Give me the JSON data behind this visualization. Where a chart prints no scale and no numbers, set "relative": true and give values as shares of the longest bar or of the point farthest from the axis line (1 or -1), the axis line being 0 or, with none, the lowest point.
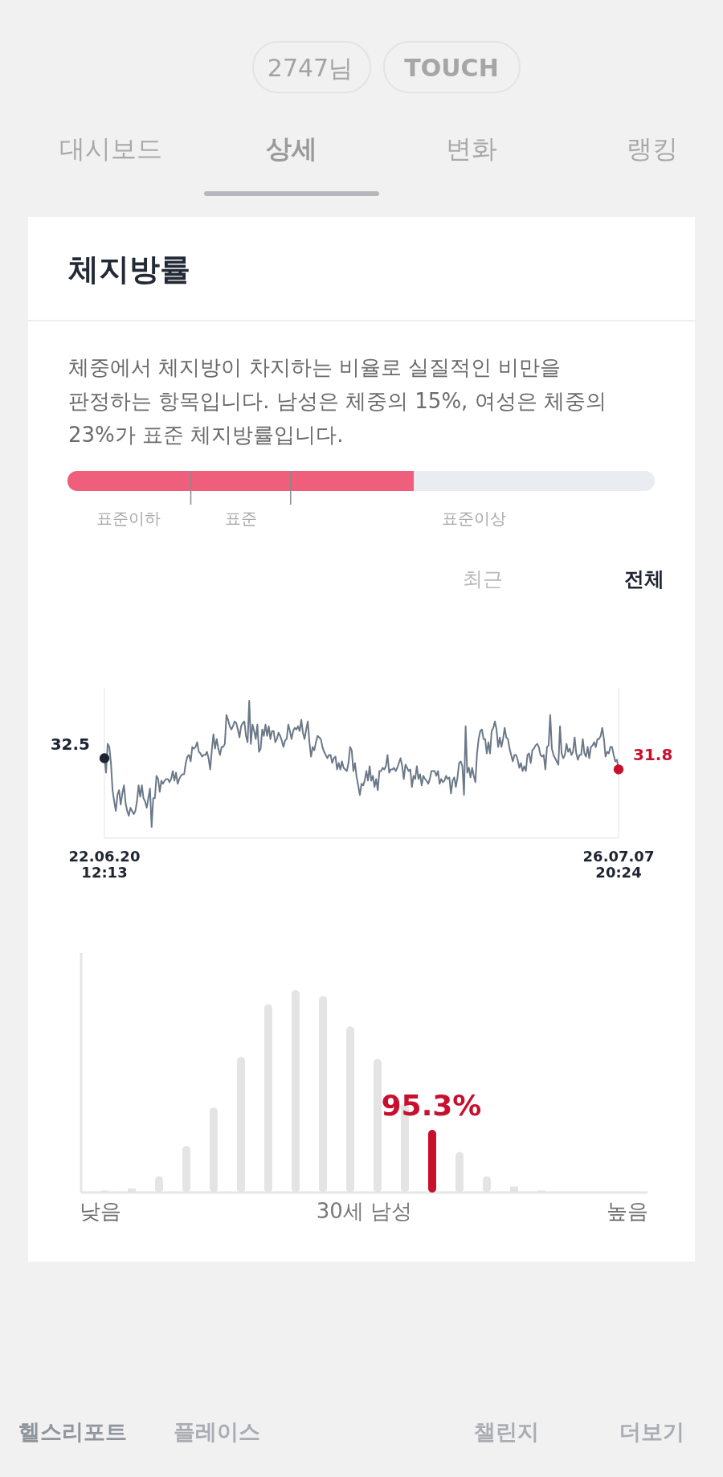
{
  "chart_data": [
    {
      "type": "other",
      "annotations": [
        "2747님",
        "TOUCH",
        "대시보드",
        "상세",
        "변화",
        "랭킹"
      ]
    },
    {
      "type": "bar",
      "orientation": "horizontal",
      "relative": true,
      "stacked": true,
      "title": "체지방률",
      "subtitle": "체중에서 체지방이 차지하는 비율로 실질적인 비만을 판정하는 항목입니다. 남성은 체중의 15%, 여성은 체중의 23%가 표준 체지방률입니다.",
      "categories": [
        null
      ],
      "series": [
        {
          "color": "#ef5f7b",
          "values": [
            0.59
          ]
        },
        {
          "color": "#e9ecf1",
          "values": [
            0.41
          ]
        }
      ],
      "ref_lines": [
        {
          "axis": "x",
          "value": 0.21
        },
        {
          "axis": "x",
          "value": 0.38
        }
      ],
      "annotations": [
        "표준이하",
        "표준",
        "표준이상"
      ]
    },
    {
      "type": "line",
      "annotations": [
        "최근",
        "전체"
      ],
      "tick_labels": "x",
      "ylim": [
        27.5,
        36.9
      ],
      "categories": [
        "22.06.20 12:13",
        null,
        null,
        null,
        null,
        null,
        null,
        null,
        null,
        null,
        null,
        null,
        null,
        null,
        null,
        null,
        null,
        null,
        null,
        null,
        null,
        null,
        null,
        null,
        null,
        null,
        null,
        null,
        null,
        null,
        null,
        null,
        null,
        null,
        null,
        null,
        null,
        null,
        null,
        null,
        null,
        null,
        null,
        null,
        null,
        null,
        null,
        null,
        null,
        null,
        null,
        null,
        null,
        null,
        null,
        null,
        null,
        null,
        null,
        null,
        null,
        null,
        null,
        null,
        null,
        null,
        null,
        null,
        null,
        null,
        null,
        null,
        null,
        null,
        null,
        null,
        null,
        null,
        null,
        null,
        null,
        null,
        null,
        null,
        null,
        null,
        null,
        null,
        null,
        null,
        null,
        null,
        null,
        null,
        null,
        null,
        null,
        null,
        null,
        null,
        null,
        null,
        null,
        null,
        null,
        null,
        null,
        null,
        null,
        null,
        null,
        null,
        null,
        null,
        null,
        null,
        null,
        null,
        null,
        null,
        null,
        null,
        null,
        null,
        null,
        null,
        null,
        null,
        null,
        null,
        null,
        null,
        null,
        null,
        null,
        null,
        null,
        null,
        null,
        null,
        null,
        null,
        null,
        null,
        null,
        null,
        null,
        null,
        null,
        null,
        null,
        null,
        null,
        null,
        null,
        null,
        null,
        null,
        null,
        null,
        null,
        null,
        null,
        null,
        null,
        null,
        null,
        null,
        null,
        null,
        null,
        null,
        null,
        null,
        null,
        null,
        null,
        null,
        null,
        null,
        null,
        null,
        null,
        null,
        null,
        null,
        null,
        null,
        null,
        null,
        null,
        null,
        null,
        null,
        null,
        null,
        null,
        null,
        null,
        null,
        null,
        null,
        null,
        null,
        null,
        null,
        null,
        null,
        null,
        null,
        null,
        null,
        null,
        null,
        null,
        null,
        null,
        null,
        null,
        null,
        null,
        null,
        null,
        null,
        null,
        null,
        null,
        null,
        null,
        null,
        null,
        null,
        null,
        null,
        null,
        null,
        null,
        null,
        null,
        null,
        null,
        null,
        null,
        null,
        null,
        null,
        null,
        null,
        null,
        null,
        null,
        null,
        null,
        null,
        null,
        null,
        null,
        null,
        null,
        null,
        null,
        null,
        null,
        null,
        null,
        null,
        null,
        null,
        null,
        null,
        null,
        null,
        null,
        null,
        null,
        null,
        null,
        null,
        null,
        null,
        null,
        null,
        null,
        null,
        null,
        null,
        null,
        null,
        null,
        null,
        null,
        null,
        null,
        null,
        null,
        null,
        null,
        null,
        null,
        null,
        null,
        null,
        null,
        null,
        null,
        null,
        null,
        null,
        null,
        null,
        null,
        null,
        null,
        null,
        null,
        null,
        "26.07.07 20:24"
      ],
      "series": [
        {
          "color": "#6b7888",
          "values": [
            32.5,
            31.6,
            33.4,
            33.2,
            32.2,
            30.5,
            29.8,
            29.2,
            30.2,
            30.5,
            29.6,
            30.3,
            30.8,
            29.7,
            29.2,
            28.9,
            29.4,
            29.2,
            29.0,
            29.2,
            29.8,
            30.8,
            30.1,
            30.8,
            30.0,
            29.8,
            29.4,
            30.0,
            30.6,
            28.2,
            30.0,
            30.0,
            31.4,
            31.2,
            30.4,
            31.1,
            30.9,
            31.1,
            31.2,
            31.2,
            31.0,
            31.2,
            31.7,
            31.1,
            31.6,
            30.9,
            31.2,
            31.4,
            31.5,
            31.5,
            32.2,
            32.6,
            32.7,
            32.3,
            33.2,
            33.1,
            33.2,
            33.5,
            32.9,
            32.8,
            32.6,
            32.7,
            32.7,
            32.9,
            32.5,
            31.8,
            33.0,
            34.0,
            33.1,
            33.7,
            33.1,
            32.7,
            33.2,
            33.2,
            33.4,
            35.2,
            34.9,
            34.5,
            34.3,
            34.5,
            34.8,
            34.7,
            34.3,
            33.8,
            34.5,
            34.7,
            34.8,
            33.9,
            33.5,
            36.1,
            33.4,
            34.6,
            34.2,
            33.7,
            34.6,
            32.9,
            33.1,
            34.3,
            33.9,
            34.6,
            33.9,
            34.5,
            33.7,
            34.2,
            34.2,
            33.5,
            33.7,
            34.1,
            33.9,
            33.6,
            33.2,
            33.6,
            33.7,
            34.6,
            34.2,
            33.7,
            34.2,
            34.4,
            34.3,
            34.5,
            34.2,
            34.9,
            34.1,
            33.7,
            34.3,
            34.8,
            33.5,
            32.6,
            33.2,
            33.0,
            33.5,
            33.9,
            33.8,
            33.7,
            33.2,
            32.9,
            32.7,
            32.5,
            32.7,
            32.7,
            32.2,
            32.5,
            32.6,
            31.8,
            32.2,
            31.8,
            32.3,
            31.9,
            31.8,
            31.7,
            32.2,
            33.2,
            33.0,
            31.7,
            32.2,
            31.3,
            30.8,
            30.2,
            30.9,
            30.8,
            31.1,
            31.7,
            31.1,
            32.0,
            31.1,
            31.4,
            30.7,
            31.2,
            30.5,
            31.7,
            31.7,
            31.9,
            31.8,
            32.0,
            32.7,
            31.6,
            31.8,
            31.8,
            31.9,
            31.7,
            31.9,
            32.2,
            32.5,
            32.0,
            31.2,
            32.1,
            31.9,
            31.7,
            31.8,
            30.7,
            31.4,
            31.2,
            32.0,
            31.2,
            31.5,
            30.8,
            31.4,
            31.2,
            31.1,
            30.9,
            31.2,
            31.7,
            31.7,
            31.7,
            31.4,
            31.7,
            30.9,
            31.2,
            31.0,
            31.1,
            31.4,
            31.2,
            31.3,
            30.3,
            31.1,
            31.3,
            30.7,
            31.3,
            32.2,
            32.3,
            32.0,
            30.2,
            34.5,
            31.6,
            31.9,
            31.3,
            31.9,
            31.4,
            31.0,
            32.8,
            33.7,
            34.2,
            34.3,
            33.7,
            33.7,
            32.8,
            33.5,
            32.8,
            34.2,
            34.4,
            34.8,
            34.3,
            33.2,
            33.8,
            33.2,
            33.7,
            34.4,
            33.8,
            33.7,
            33.1,
            32.7,
            32.3,
            32.7,
            32.7,
            32.4,
            31.9,
            32.2,
            31.7,
            32.0,
            31.7,
            32.7,
            32.8,
            32.2,
            33.0,
            33.1,
            33.3,
            33.4,
            33.2,
            32.7,
            32.6,
            32.7,
            31.8,
            33.2,
            33.3,
            35.2,
            33.1,
            32.7,
            32.5,
            32.3,
            32.1,
            34.5,
            32.8,
            32.5,
            32.7,
            33.4,
            32.9,
            33.1,
            32.7,
            32.9,
            33.8,
            32.8,
            32.4,
            32.7,
            32.7,
            33.7,
            32.8,
            32.6,
            33.2,
            32.5,
            33.2,
            33.3,
            33.5,
            33.2,
            33.7,
            33.7,
            33.9,
            34.4,
            33.7,
            32.6,
            32.9,
            32.8,
            33.2,
            33.2,
            32.7,
            32.3,
            32.4,
            31.8
          ]
        },
        {
          "type": "scatter",
          "x": [
            "22.06.20 12:13",
            "26.07.07 20:24"
          ],
          "values": [
            32.5,
            31.8
          ],
          "colors": [
            "#1c2333",
            "#c8102e"
          ],
          "value_labels": [
            "32.5",
            "31.8"
          ]
        }
      ]
    },
    {
      "type": "bar",
      "relative": true,
      "tick_labels": "x",
      "xlabel": "30세 남성",
      "annotations": [
        "95.3%"
      ],
      "categories": [
        "낮음",
        null,
        null,
        null,
        null,
        null,
        null,
        null,
        null,
        null,
        null,
        null,
        null,
        null,
        null,
        null,
        null,
        null,
        null,
        "높음"
      ],
      "values": [
        0.01,
        0.02,
        0.08,
        0.23,
        0.42,
        0.67,
        0.93,
        1,
        0.97,
        0.82,
        0.66,
        0.44,
        0.31,
        0.2,
        0.08,
        0.03,
        0.01,
        null,
        null,
        null
      ],
      "colors": [
        "#e4e4e4",
        "#e4e4e4",
        "#e4e4e4",
        "#e4e4e4",
        "#e4e4e4",
        "#e4e4e4",
        "#e4e4e4",
        "#e4e4e4",
        "#e4e4e4",
        "#e4e4e4",
        "#e4e4e4",
        "#e4e4e4",
        "#c8102e",
        "#e4e4e4",
        "#e4e4e4",
        "#e4e4e4",
        "#e4e4e4",
        "#e4e4e4",
        "#e4e4e4",
        "#e4e4e4"
      ]
    },
    {
      "type": "other",
      "annotations": [
        "헬스리포트",
        "플레이스",
        "챌린지",
        "더보기"
      ]
    }
  ]
}
